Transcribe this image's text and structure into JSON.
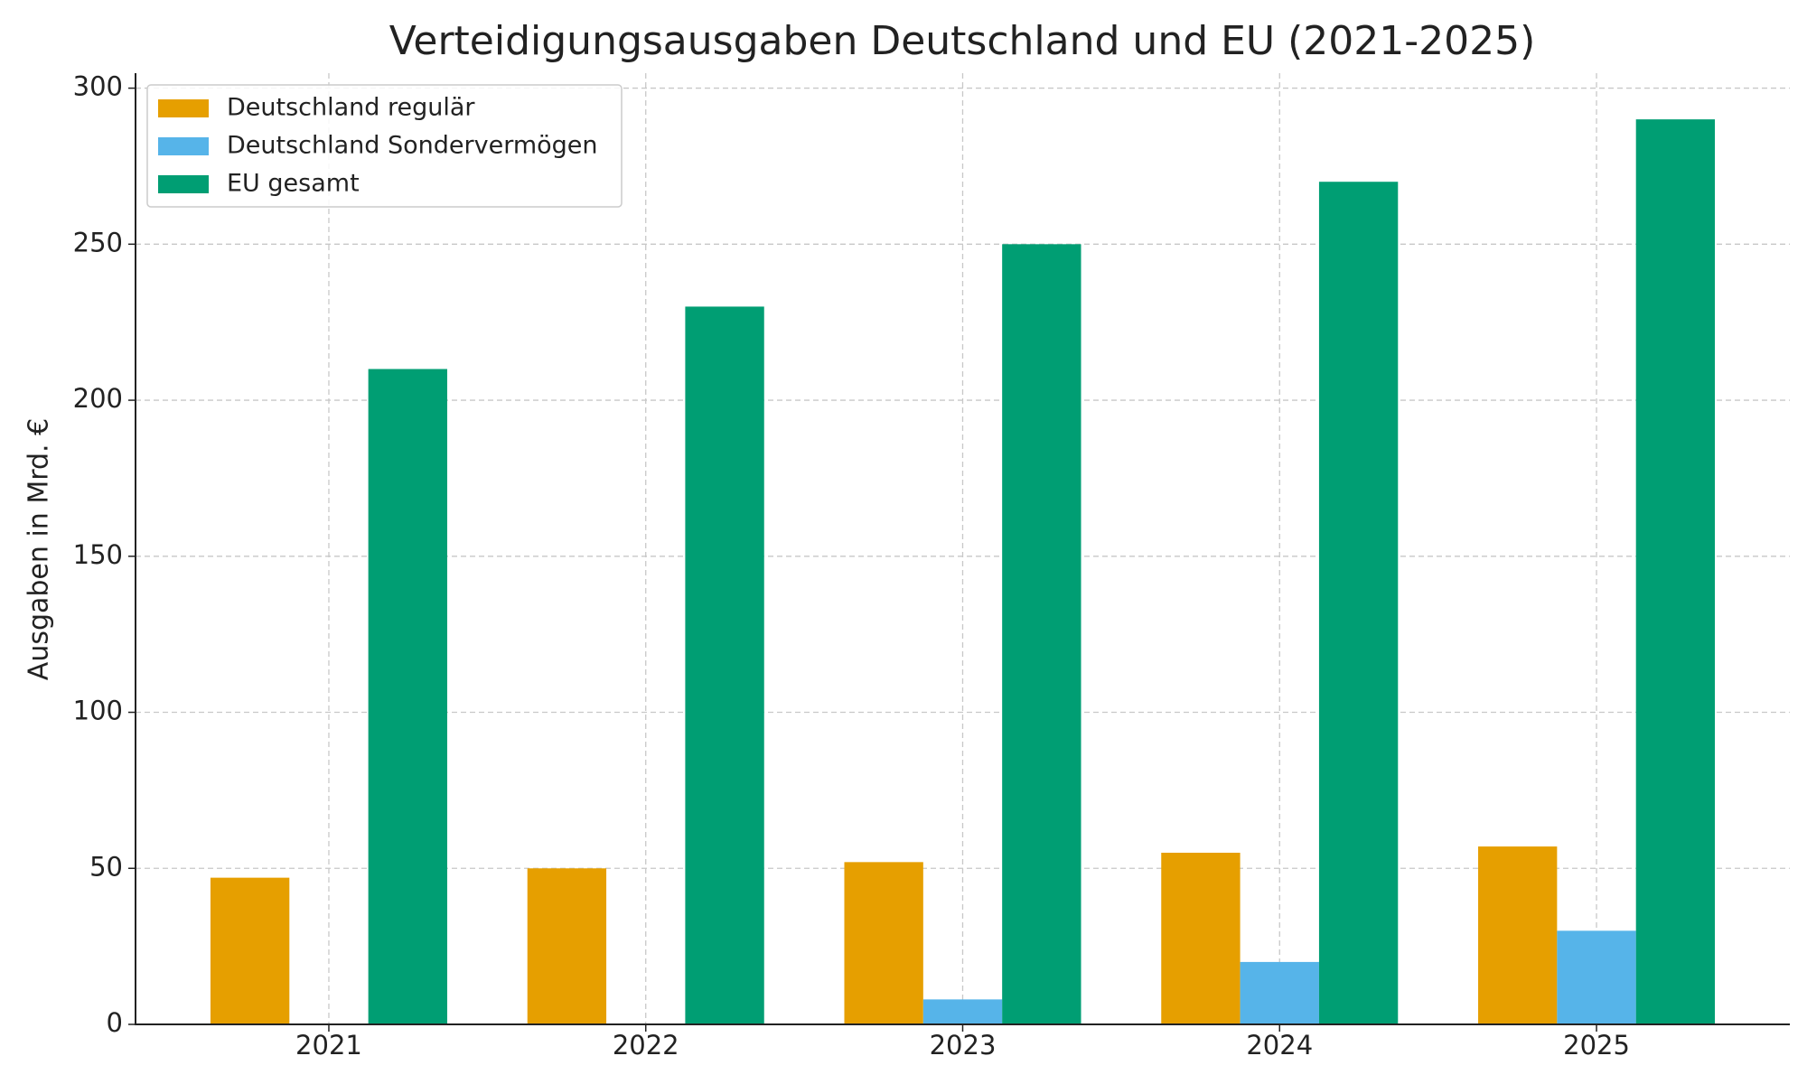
{
  "chart_data": {
    "type": "bar",
    "title": "Verteidigungsausgaben Deutschland und EU (2021-2025)",
    "y_label": "Ausgaben in Mrd. €",
    "categories": [
      "2021",
      "2022",
      "2023",
      "2024",
      "2025"
    ],
    "series": [
      {
        "name": "Deutschland regulär",
        "color": "#e69f00",
        "values": [
          47,
          50,
          52,
          55,
          57
        ]
      },
      {
        "name": "Deutschland Sondervermögen",
        "color": "#56b4e9",
        "values": [
          0,
          0,
          8,
          20,
          30
        ]
      },
      {
        "name": "EU gesamt",
        "color": "#009e73",
        "values": [
          210,
          230,
          250,
          270,
          290
        ]
      }
    ],
    "ylim": [
      0,
      304.8
    ],
    "yticks": [
      0,
      50,
      100,
      150,
      200,
      250,
      300
    ],
    "grid": true,
    "legend": "upper left"
  }
}
